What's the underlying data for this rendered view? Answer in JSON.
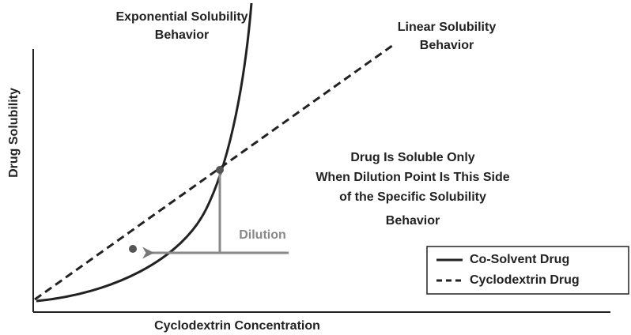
{
  "axes": {
    "x_label": "Cyclodextrin Concentration",
    "y_label": "Drug Solubility"
  },
  "curve_labels": {
    "exponential": [
      "Exponential Solubility",
      "Behavior"
    ],
    "linear": [
      "Linear Solubility",
      "Behavior"
    ]
  },
  "note": [
    "Drug Is Soluble Only",
    "When Dilution Point Is This Side",
    "of  the Specific Solubility",
    "Behavior"
  ],
  "dilution_label": "Dilution",
  "legend": [
    "Co-Solvent Drug",
    "Cyclodextrin Drug"
  ]
}
